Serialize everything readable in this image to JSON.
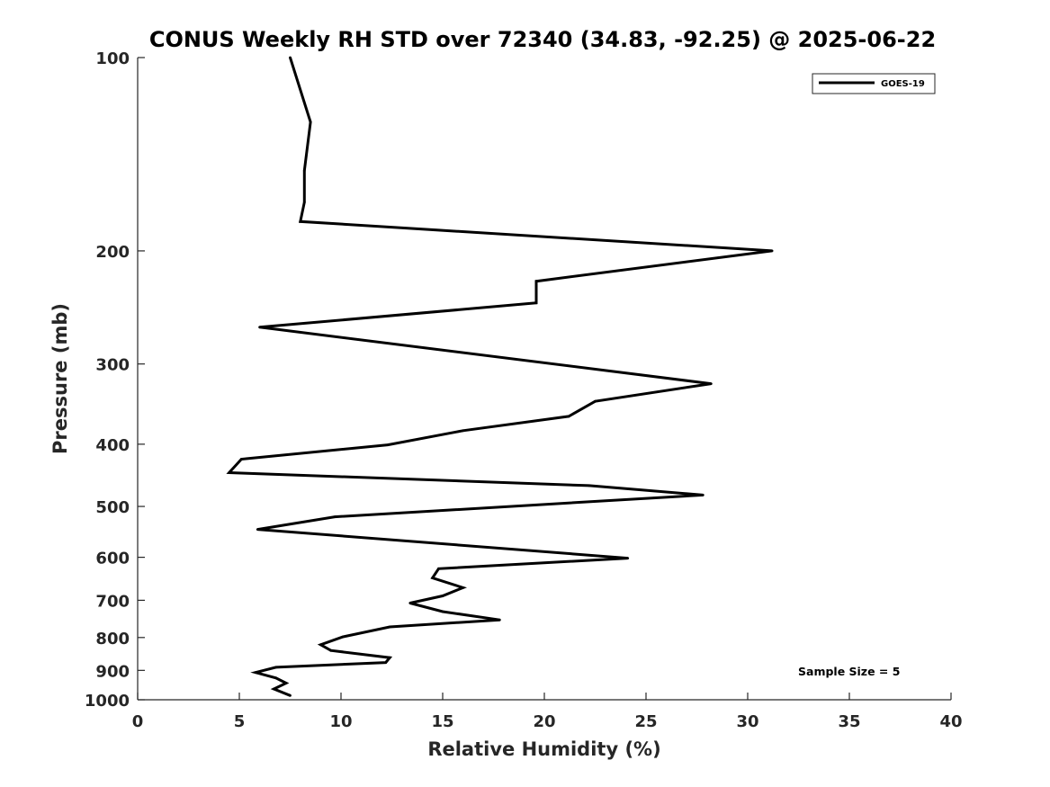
{
  "chart_data": {
    "type": "line",
    "title": "CONUS Weekly RH STD over 72340 (34.83, -92.25) @ 2025-06-22",
    "xlabel": "Relative Humidity (%)",
    "ylabel": "Pressure (mb)",
    "xlim": [
      0,
      40
    ],
    "ylim": [
      100,
      1000
    ],
    "y_scale": "log",
    "y_reversed": true,
    "x_ticks": [
      0,
      5,
      10,
      15,
      20,
      25,
      30,
      35,
      40
    ],
    "x_tick_labels": [
      "0",
      "5",
      "10",
      "15",
      "20",
      "25",
      "30",
      "35",
      "40"
    ],
    "y_ticks": [
      100,
      200,
      300,
      400,
      500,
      600,
      700,
      800,
      900,
      1000
    ],
    "y_tick_labels": [
      "100",
      "200",
      "300",
      "400",
      "500",
      "600",
      "700",
      "800",
      "900",
      "1000"
    ],
    "grid": false,
    "legend_position": "top-right",
    "legend_entries": [
      "GOES-19"
    ],
    "annotation": "Sample Size = 5",
    "series": [
      {
        "name": "GOES-19",
        "color": "#000000",
        "points": [
          {
            "rh": 7.5,
            "p": 100
          },
          {
            "rh": 8.5,
            "p": 126
          },
          {
            "rh": 8.2,
            "p": 150
          },
          {
            "rh": 8.2,
            "p": 168
          },
          {
            "rh": 8.0,
            "p": 180
          },
          {
            "rh": 31.2,
            "p": 200
          },
          {
            "rh": 19.6,
            "p": 223
          },
          {
            "rh": 19.6,
            "p": 241
          },
          {
            "rh": 6.0,
            "p": 263
          },
          {
            "rh": 28.2,
            "p": 322
          },
          {
            "rh": 22.5,
            "p": 343
          },
          {
            "rh": 21.2,
            "p": 362
          },
          {
            "rh": 16.0,
            "p": 381
          },
          {
            "rh": 12.3,
            "p": 401
          },
          {
            "rh": 5.1,
            "p": 422
          },
          {
            "rh": 4.5,
            "p": 443
          },
          {
            "rh": 22.2,
            "p": 464
          },
          {
            "rh": 27.8,
            "p": 480
          },
          {
            "rh": 9.7,
            "p": 519
          },
          {
            "rh": 5.9,
            "p": 543
          },
          {
            "rh": 24.1,
            "p": 602
          },
          {
            "rh": 14.8,
            "p": 625
          },
          {
            "rh": 14.5,
            "p": 646
          },
          {
            "rh": 16.0,
            "p": 669
          },
          {
            "rh": 15.0,
            "p": 689
          },
          {
            "rh": 13.4,
            "p": 707
          },
          {
            "rh": 15.0,
            "p": 729
          },
          {
            "rh": 17.8,
            "p": 751
          },
          {
            "rh": 12.4,
            "p": 770
          },
          {
            "rh": 10.1,
            "p": 798
          },
          {
            "rh": 9.0,
            "p": 821
          },
          {
            "rh": 9.5,
            "p": 838
          },
          {
            "rh": 12.4,
            "p": 860
          },
          {
            "rh": 12.2,
            "p": 875
          },
          {
            "rh": 6.8,
            "p": 890
          },
          {
            "rh": 5.8,
            "p": 907
          },
          {
            "rh": 6.8,
            "p": 925
          },
          {
            "rh": 7.3,
            "p": 942
          },
          {
            "rh": 6.7,
            "p": 962
          },
          {
            "rh": 7.5,
            "p": 985
          }
        ]
      }
    ]
  }
}
